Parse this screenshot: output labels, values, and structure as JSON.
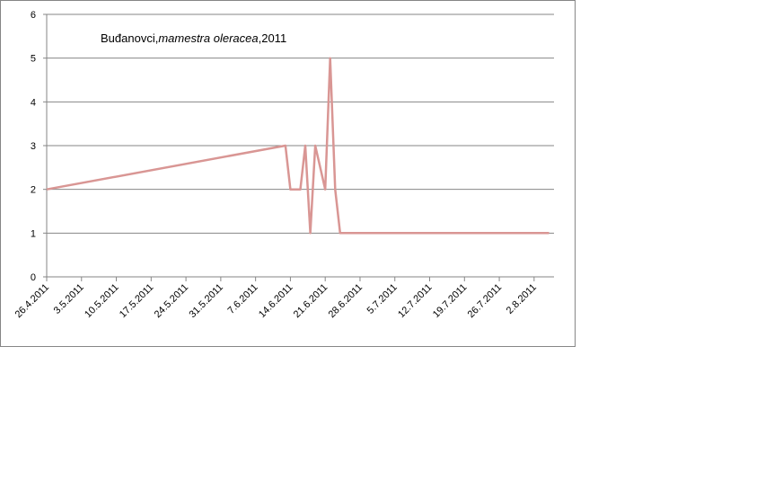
{
  "chart_data": {
    "type": "line",
    "title": [
      "Buđanovci,",
      "mamestra oleracea",
      ",2011"
    ],
    "x": [
      "26.4.2011",
      "13.6.2011",
      "14.6.2011",
      "16.6.2011",
      "17.6.2011",
      "18.6.2011",
      "19.6.2011",
      "21.6.2011",
      "22.6.2011",
      "23.6.2011",
      "24.6.2011",
      "5.8.2011"
    ],
    "series": [
      {
        "name": "mamestra oleracea",
        "color": "#d99694",
        "values": [
          2,
          3,
          2,
          2,
          3,
          1,
          3,
          2,
          5,
          2,
          1,
          1
        ]
      }
    ],
    "xlim": [
      "26.4.2011",
      "6.8.2011"
    ],
    "xticks": [
      "26.4.2011",
      "3.5.2011",
      "10.5.2011",
      "17.5.2011",
      "24.5.2011",
      "31.5.2011",
      "7.6.2011",
      "14.6.2011",
      "21.6.2011",
      "28.6.2011",
      "5.7.2011",
      "12.7.2011",
      "19.7.2011",
      "26.7.2011",
      "2.8.2011"
    ],
    "ylim": [
      0,
      6
    ],
    "yticks": [
      0,
      1,
      2,
      3,
      4,
      5,
      6
    ],
    "grid": true
  }
}
